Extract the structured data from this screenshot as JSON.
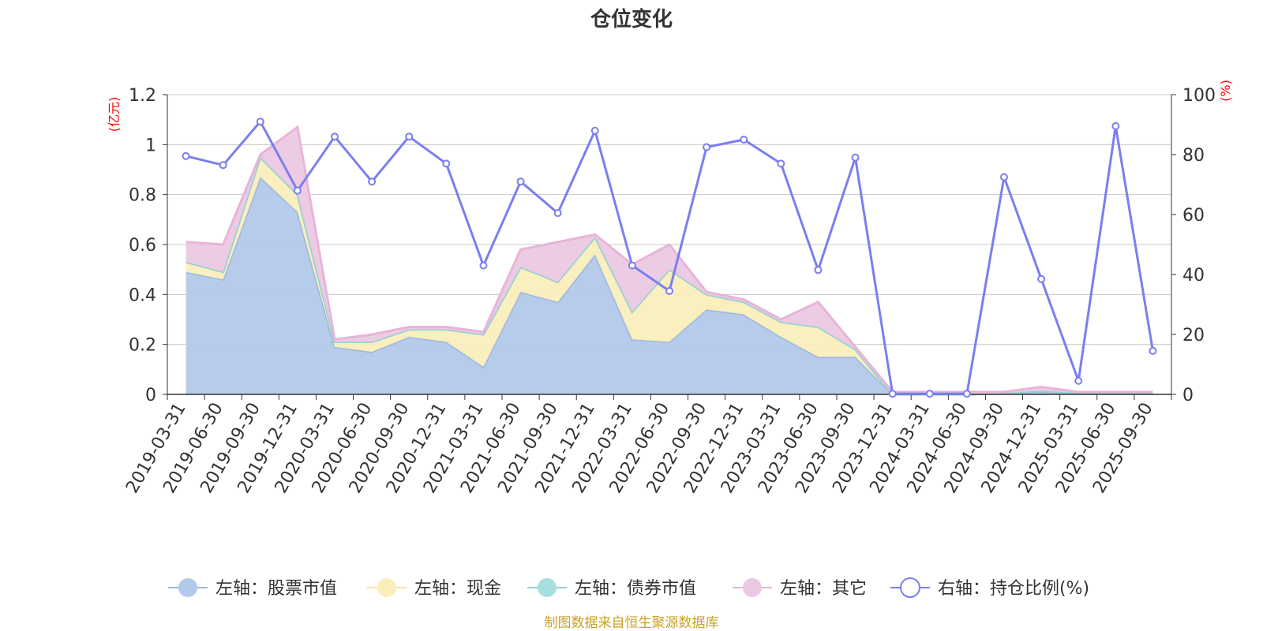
{
  "chart_data": {
    "type": "area",
    "title": "仓位变化",
    "left_axis_unit": "(亿元)",
    "right_axis_unit": "(%)",
    "categories": [
      "2019-03-31",
      "2019-06-30",
      "2019-09-30",
      "2019-12-31",
      "2020-03-31",
      "2020-06-30",
      "2020-09-30",
      "2020-12-31",
      "2021-03-31",
      "2021-06-30",
      "2021-09-30",
      "2021-12-31",
      "2022-03-31",
      "2022-06-30",
      "2022-09-30",
      "2022-12-31",
      "2023-03-31",
      "2023-06-30",
      "2023-09-30",
      "2023-12-31",
      "2024-03-31",
      "2024-06-30",
      "2024-09-30",
      "2024-12-31",
      "2025-03-31",
      "2025-06-30",
      "2025-09-30"
    ],
    "left_ylim": [
      0,
      1.2
    ],
    "left_ticks": [
      "0",
      "0.2",
      "0.4",
      "0.6",
      "0.8",
      "1",
      "1.2"
    ],
    "right_ylim": [
      0,
      100
    ],
    "right_ticks": [
      "0",
      "20",
      "40",
      "60",
      "80",
      "100"
    ],
    "series": [
      {
        "name": "左轴：股票市值",
        "axis": "left",
        "color": "#9bb8e0",
        "fill": "#b3c9ea",
        "values": [
          0.49,
          0.46,
          0.87,
          0.73,
          0.19,
          0.17,
          0.23,
          0.21,
          0.11,
          0.41,
          0.37,
          0.56,
          0.22,
          0.21,
          0.34,
          0.32,
          0.23,
          0.15,
          0.15,
          0.0,
          0.0,
          0.0,
          0.005,
          0.01,
          0.005,
          0.005,
          0.005
        ]
      },
      {
        "name": "左轴：现金",
        "axis": "left",
        "color": "#f5e49a",
        "fill": "#faeebc",
        "values": [
          0.04,
          0.03,
          0.08,
          0.07,
          0.02,
          0.04,
          0.03,
          0.05,
          0.13,
          0.1,
          0.08,
          0.07,
          0.11,
          0.29,
          0.06,
          0.05,
          0.06,
          0.12,
          0.03,
          0.0,
          0.0,
          0.0,
          0.0,
          0.005,
          0.0,
          0.0,
          0.0
        ]
      },
      {
        "name": "左轴：债券市值",
        "axis": "left",
        "color": "#8fd3d3",
        "fill": "#a8dede",
        "values": [
          0,
          0,
          0,
          0,
          0,
          0,
          0,
          0,
          0,
          0,
          0,
          0,
          0,
          0,
          0,
          0,
          0,
          0,
          0,
          0,
          0,
          0,
          0,
          0,
          0,
          0,
          0
        ]
      },
      {
        "name": "左轴：其它",
        "axis": "left",
        "color": "#e8b4d8",
        "fill": "#ebc9e3",
        "values": [
          0.08,
          0.11,
          0.01,
          0.27,
          0.01,
          0.03,
          0.01,
          0.01,
          0.01,
          0.07,
          0.16,
          0.01,
          0.19,
          0.1,
          0.01,
          0.01,
          0.01,
          0.1,
          0.01,
          0.01,
          0.01,
          0.01,
          0.005,
          0.015,
          0.005,
          0.005,
          0.005
        ]
      },
      {
        "name": "右轴：持仓比例(%)",
        "axis": "right",
        "color": "#7b7ef0",
        "values": [
          79.5,
          76.5,
          91,
          68,
          86,
          71,
          86,
          77,
          43,
          71,
          60.5,
          88,
          43,
          34.5,
          82.5,
          85,
          77,
          41.5,
          79,
          0.2,
          0.2,
          0.2,
          72.5,
          38.5,
          4.5,
          89.5,
          14.5
        ]
      }
    ]
  },
  "legend": {
    "items": [
      "左轴：股票市值",
      "左轴：现金",
      "左轴：债券市值",
      "左轴：其它",
      "右轴：持仓比例(%)"
    ]
  },
  "footer": {
    "source": "制图数据来自恒生聚源数据库"
  }
}
